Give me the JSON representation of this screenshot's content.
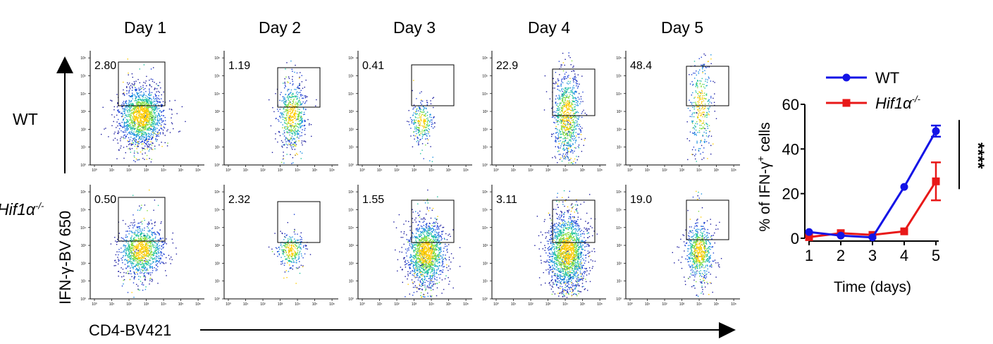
{
  "columns": [
    "Day 1",
    "Day 2",
    "Day 3",
    "Day 4",
    "Day 5"
  ],
  "rows": [
    {
      "label": "WT",
      "italic": false,
      "values": [
        "2.80",
        "1.19",
        "0.41",
        "22.9",
        "48.4"
      ]
    },
    {
      "label": "Hif1α",
      "sup": "-/-",
      "italic": true,
      "values": [
        "0.50",
        "2.32",
        "1.55",
        "3.11",
        "19.0"
      ]
    }
  ],
  "y_axis_label": "IFN-γ-BV 650",
  "x_axis_label": "CD4-BV421",
  "colors": {
    "wt": "#1414e6",
    "hif": "#e81818"
  },
  "chart_data": [
    {
      "type": "scatter",
      "panel_grid": "2 rows x 5 columns of flow cytometry density plots",
      "x_scale": "log",
      "y_scale": "log",
      "gate_percentages": {
        "WT": [
          2.8,
          1.19,
          0.41,
          22.9,
          48.4
        ],
        "Hif1a-/-": [
          0.5,
          2.32,
          1.55,
          3.11,
          19.0
        ]
      }
    },
    {
      "type": "line",
      "x": [
        1,
        2,
        3,
        4,
        5
      ],
      "xlabel": "Time (days)",
      "ylabel": "% of IFN-γ",
      "ylabel_sup": "+",
      "ylabel_suffix": " cells",
      "ylim": [
        0,
        60
      ],
      "yticks": [
        0,
        20,
        40,
        60
      ],
      "series": [
        {
          "name": "WT",
          "marker": "circle",
          "color": "#1414e6",
          "values": [
            2.8,
            1.2,
            0.4,
            23.0,
            48.0
          ],
          "error": [
            0.3,
            0.2,
            0.2,
            0.4,
            2.5
          ]
        },
        {
          "name": "Hif1α",
          "name_sup": "-/-",
          "marker": "square",
          "color": "#e81818",
          "values": [
            0.5,
            2.3,
            1.5,
            3.1,
            25.5
          ],
          "error": [
            0.2,
            0.3,
            0.2,
            0.3,
            8.5
          ]
        }
      ],
      "significance": "****",
      "legend_position": "top"
    }
  ]
}
